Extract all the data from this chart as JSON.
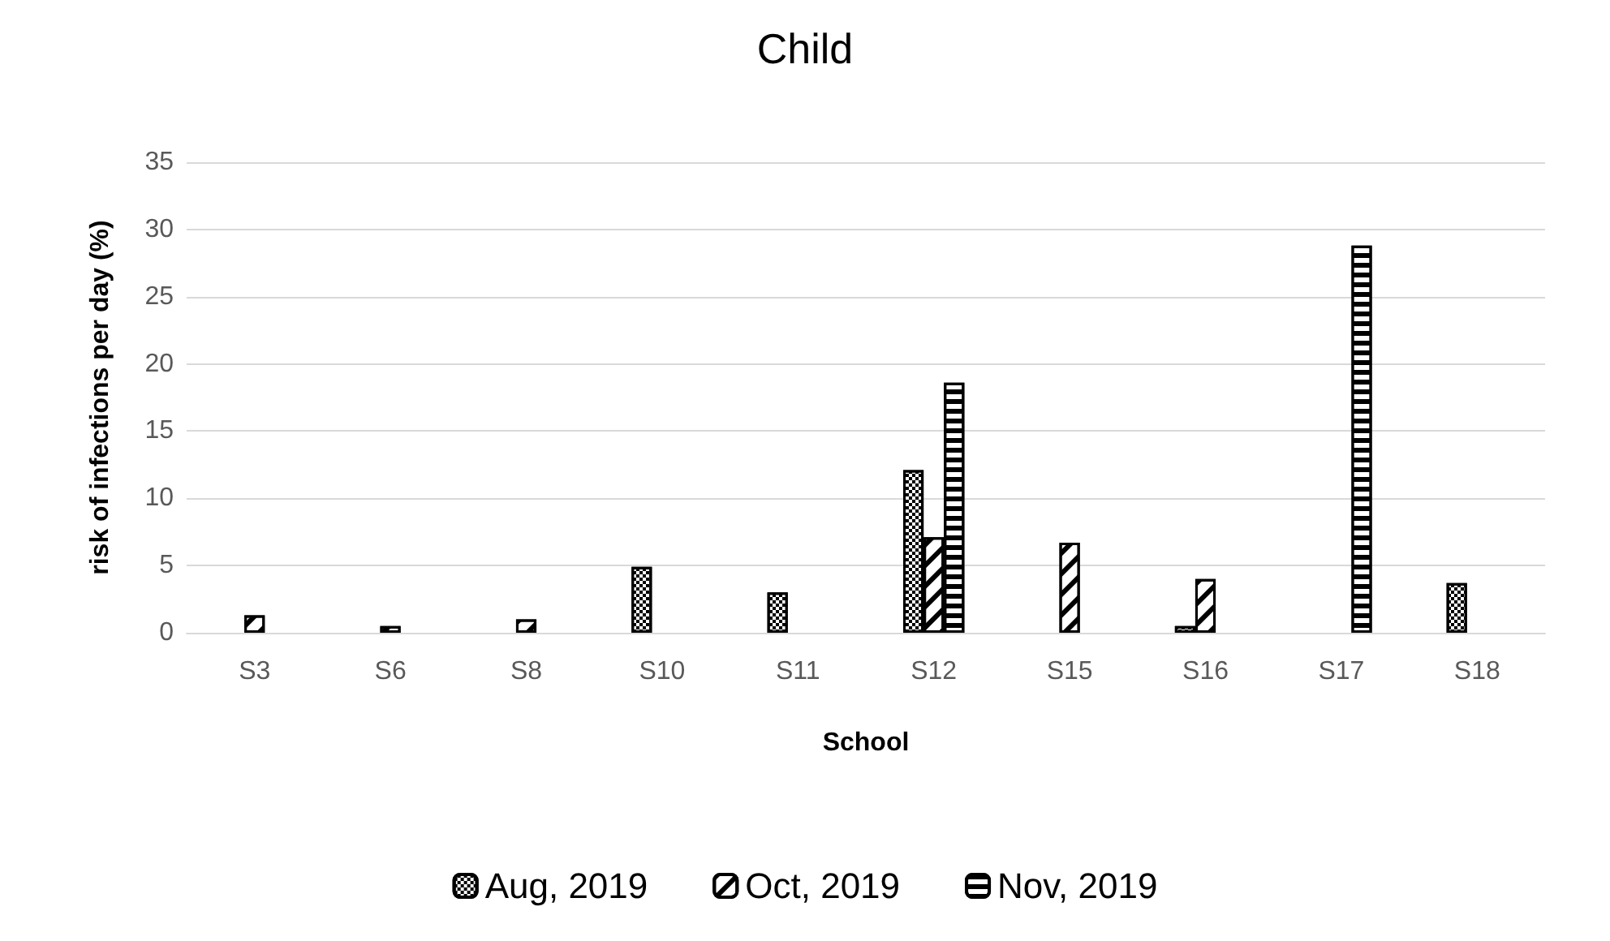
{
  "chart_data": {
    "type": "bar",
    "title": "Child",
    "xlabel": "School",
    "ylabel": "risk of infections per day (%)",
    "categories": [
      "S3",
      "S6",
      "S8",
      "S10",
      "S11",
      "S12",
      "S15",
      "S16",
      "S17",
      "S18"
    ],
    "series": [
      {
        "name": "Aug, 2019",
        "color": "#000000",
        "values": [
          null,
          null,
          null,
          4.9,
          3.0,
          12.1,
          null,
          0.5,
          null,
          3.7
        ]
      },
      {
        "name": "Oct, 2019",
        "color": "#000000",
        "values": [
          1.3,
          0.5,
          1.0,
          null,
          null,
          7.1,
          6.7,
          4.0,
          null,
          null
        ]
      },
      {
        "name": "Nov, 2019",
        "color": "#000000",
        "values": [
          null,
          null,
          null,
          null,
          null,
          18.6,
          null,
          null,
          28.8,
          null
        ]
      }
    ],
    "ylim": [
      0,
      35
    ],
    "yticks": [
      0,
      5,
      10,
      15,
      20,
      25,
      30,
      35
    ],
    "grid": "y",
    "legend": "bottom"
  }
}
